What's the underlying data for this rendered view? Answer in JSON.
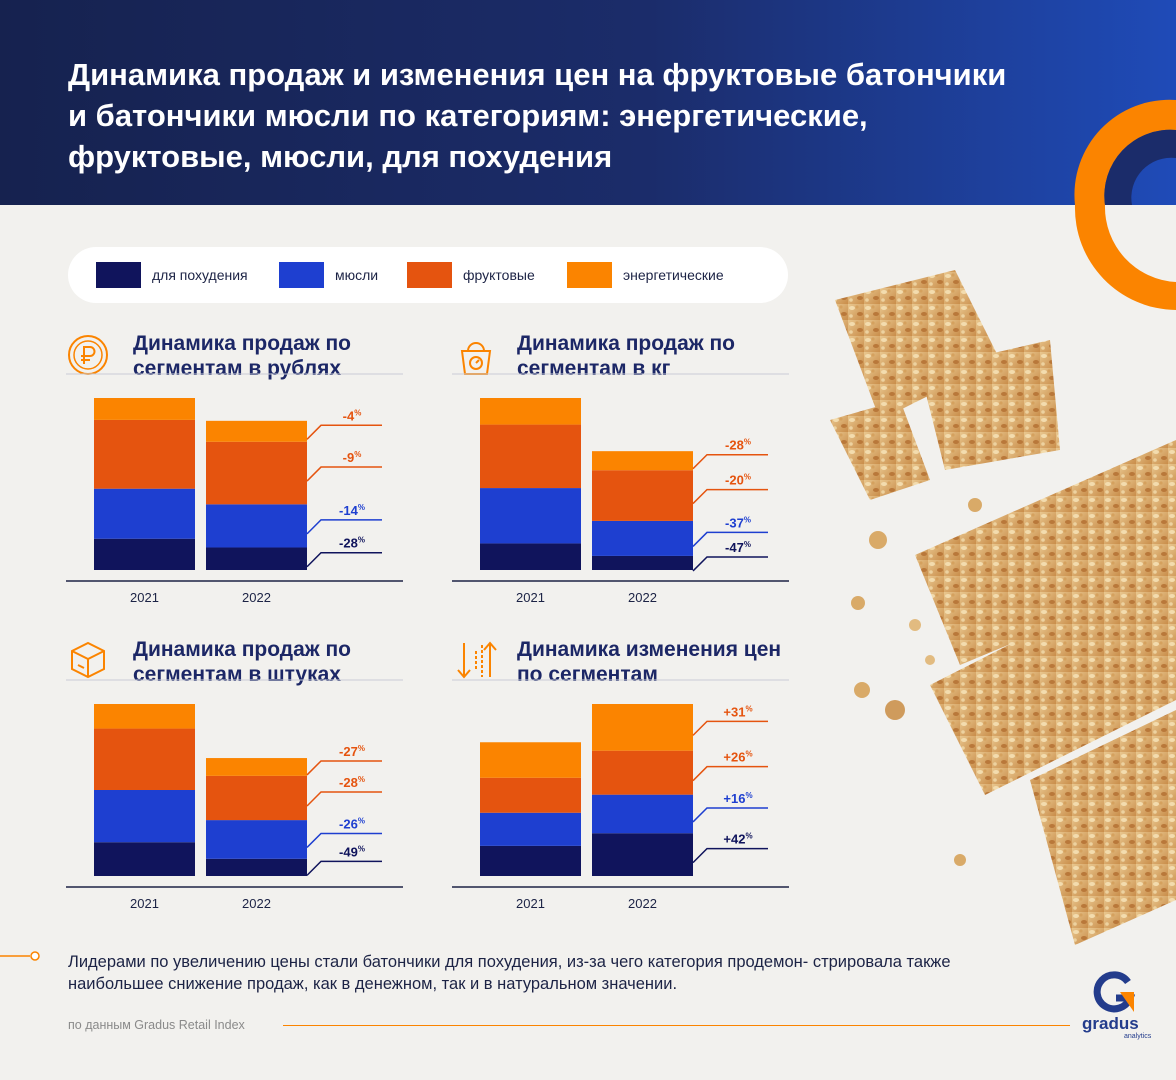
{
  "title": "Динамика продаж и изменения цен на фруктовые батончики и батончики мюсли по категориям: энергетические, фруктовые, мюсли, для похудения",
  "colors": {
    "header_bg": "#1b2c6a",
    "accent_orange": "#fb8400",
    "dark_navy": "#10145c",
    "blue": "#1e3fd0",
    "red_orange": "#e5540f",
    "orange": "#fb8400"
  },
  "legend": [
    {
      "label": "для похудения",
      "color": "#10145c"
    },
    {
      "label": "мюсли",
      "color": "#1e3fd0"
    },
    {
      "label": "фруктовые",
      "color": "#e5540f"
    },
    {
      "label": "энергетические",
      "color": "#fb8400"
    }
  ],
  "panels": [
    {
      "title": "Динамика продаж по сегментам в рублях",
      "icon": "ruble-coin-icon"
    },
    {
      "title": "Динамика продаж по сегментам в кг",
      "icon": "scales-icon"
    },
    {
      "title": "Динамика продаж по сегментам в штуках",
      "icon": "box-icon"
    },
    {
      "title": "Динамика изменения цен по сегментам",
      "icon": "up-down-arrows-icon"
    }
  ],
  "chart_data": [
    {
      "type": "bar",
      "stacked": true,
      "title": "Динамика продаж по сегментам в рублях",
      "categories": [
        "2021",
        "2022"
      ],
      "series": [
        {
          "name": "для похудения",
          "values": [
            100,
            72
          ]
        },
        {
          "name": "мюсли",
          "values": [
            160,
            138
          ]
        },
        {
          "name": "фруктовые",
          "values": [
            220,
            200
          ]
        },
        {
          "name": "энергетические",
          "values": [
            70,
            67
          ]
        }
      ],
      "change_labels": [
        "-28",
        "-14",
        "-9",
        "-4"
      ],
      "grid": false
    },
    {
      "type": "bar",
      "stacked": true,
      "title": "Динамика продаж по сегментам в кг",
      "categories": [
        "2021",
        "2022"
      ],
      "series": [
        {
          "name": "для похудения",
          "values": [
            85,
            45
          ]
        },
        {
          "name": "мюсли",
          "values": [
            177,
            112
          ]
        },
        {
          "name": "фруктовые",
          "values": [
            203,
            162
          ]
        },
        {
          "name": "энергетические",
          "values": [
            85,
            61
          ]
        }
      ],
      "change_labels": [
        "-47",
        "-37",
        "-20",
        "-28"
      ],
      "grid": false
    },
    {
      "type": "bar",
      "stacked": true,
      "title": "Динамика продаж по сегментам в штуках",
      "categories": [
        "2021",
        "2022"
      ],
      "series": [
        {
          "name": "для похудения",
          "values": [
            110,
            56
          ]
        },
        {
          "name": "мюсли",
          "values": [
            170,
            126
          ]
        },
        {
          "name": "фруктовые",
          "values": [
            200,
            144
          ]
        },
        {
          "name": "энергетические",
          "values": [
            80,
            58
          ]
        }
      ],
      "change_labels": [
        "-49",
        "-26",
        "-28",
        "-27"
      ],
      "grid": false
    },
    {
      "type": "bar",
      "stacked": true,
      "title": "Динамика изменения цен по сегментам",
      "categories": [
        "2021",
        "2022"
      ],
      "series": [
        {
          "name": "для похудения",
          "values": [
            100,
            142
          ]
        },
        {
          "name": "мюсли",
          "values": [
            110,
            128
          ]
        },
        {
          "name": "фруктовые",
          "values": [
            116,
            146
          ]
        },
        {
          "name": "энергетические",
          "values": [
            118,
            155
          ]
        }
      ],
      "change_labels": [
        "+42",
        "+16",
        "+26",
        "+31"
      ],
      "grid": false
    }
  ],
  "note": "Лидерами по увеличению цены стали батончики для похудения, из-за чего категория продемон- стрировала также наибольшее снижение продаж, как в денежном, так и в натуральном значении.",
  "source": "по данным Gradus Retail Index",
  "logo": {
    "name": "gradus",
    "sub": "analytics"
  }
}
